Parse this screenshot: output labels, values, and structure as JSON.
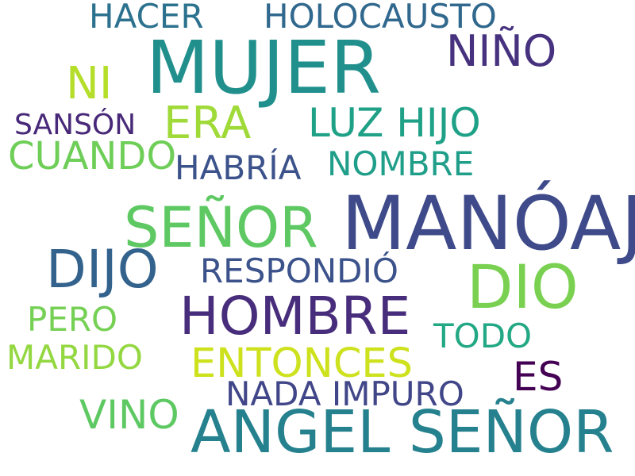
{
  "words": [
    {
      "text": "MUJER",
      "color": "#21908d"
    },
    {
      "text": "MANÓAJ",
      "color": "#3e4a89"
    },
    {
      "text": "ANGEL SEÑOR",
      "color": "#26818e"
    },
    {
      "text": "SEÑOR",
      "color": "#5ec962"
    },
    {
      "text": "DIO",
      "color": "#7ad151"
    },
    {
      "text": "DIJO",
      "color": "#33638d"
    },
    {
      "text": "HOMBRE",
      "color": "#472d7b"
    },
    {
      "text": "NIÑO",
      "color": "#46327e"
    },
    {
      "text": "NI",
      "color": "#b5de2b"
    },
    {
      "text": "ERA",
      "color": "#a0da39"
    },
    {
      "text": "LUZ HIJO",
      "color": "#1fa187"
    },
    {
      "text": "ENTONCES",
      "color": "#cde11d"
    },
    {
      "text": "CUANDO",
      "color": "#6ece58"
    },
    {
      "text": "HABRÍA",
      "color": "#3b528b"
    },
    {
      "text": "NOMBRE",
      "color": "#1f9e89"
    },
    {
      "text": "RESPONDIÓ",
      "color": "#3b528b"
    },
    {
      "text": "HOLOCAUSTO",
      "color": "#31688e"
    },
    {
      "text": "HACER",
      "color": "#2c728e"
    },
    {
      "text": "SANSÓN",
      "color": "#482878"
    },
    {
      "text": "PERO",
      "color": "#75d054"
    },
    {
      "text": "MARIDO",
      "color": "#93d741"
    },
    {
      "text": "TODO",
      "color": "#22a884"
    },
    {
      "text": "ES",
      "color": "#440154"
    },
    {
      "text": "NADA IMPURO",
      "color": "#404688"
    },
    {
      "text": "VINO",
      "color": "#5ec962"
    }
  ]
}
